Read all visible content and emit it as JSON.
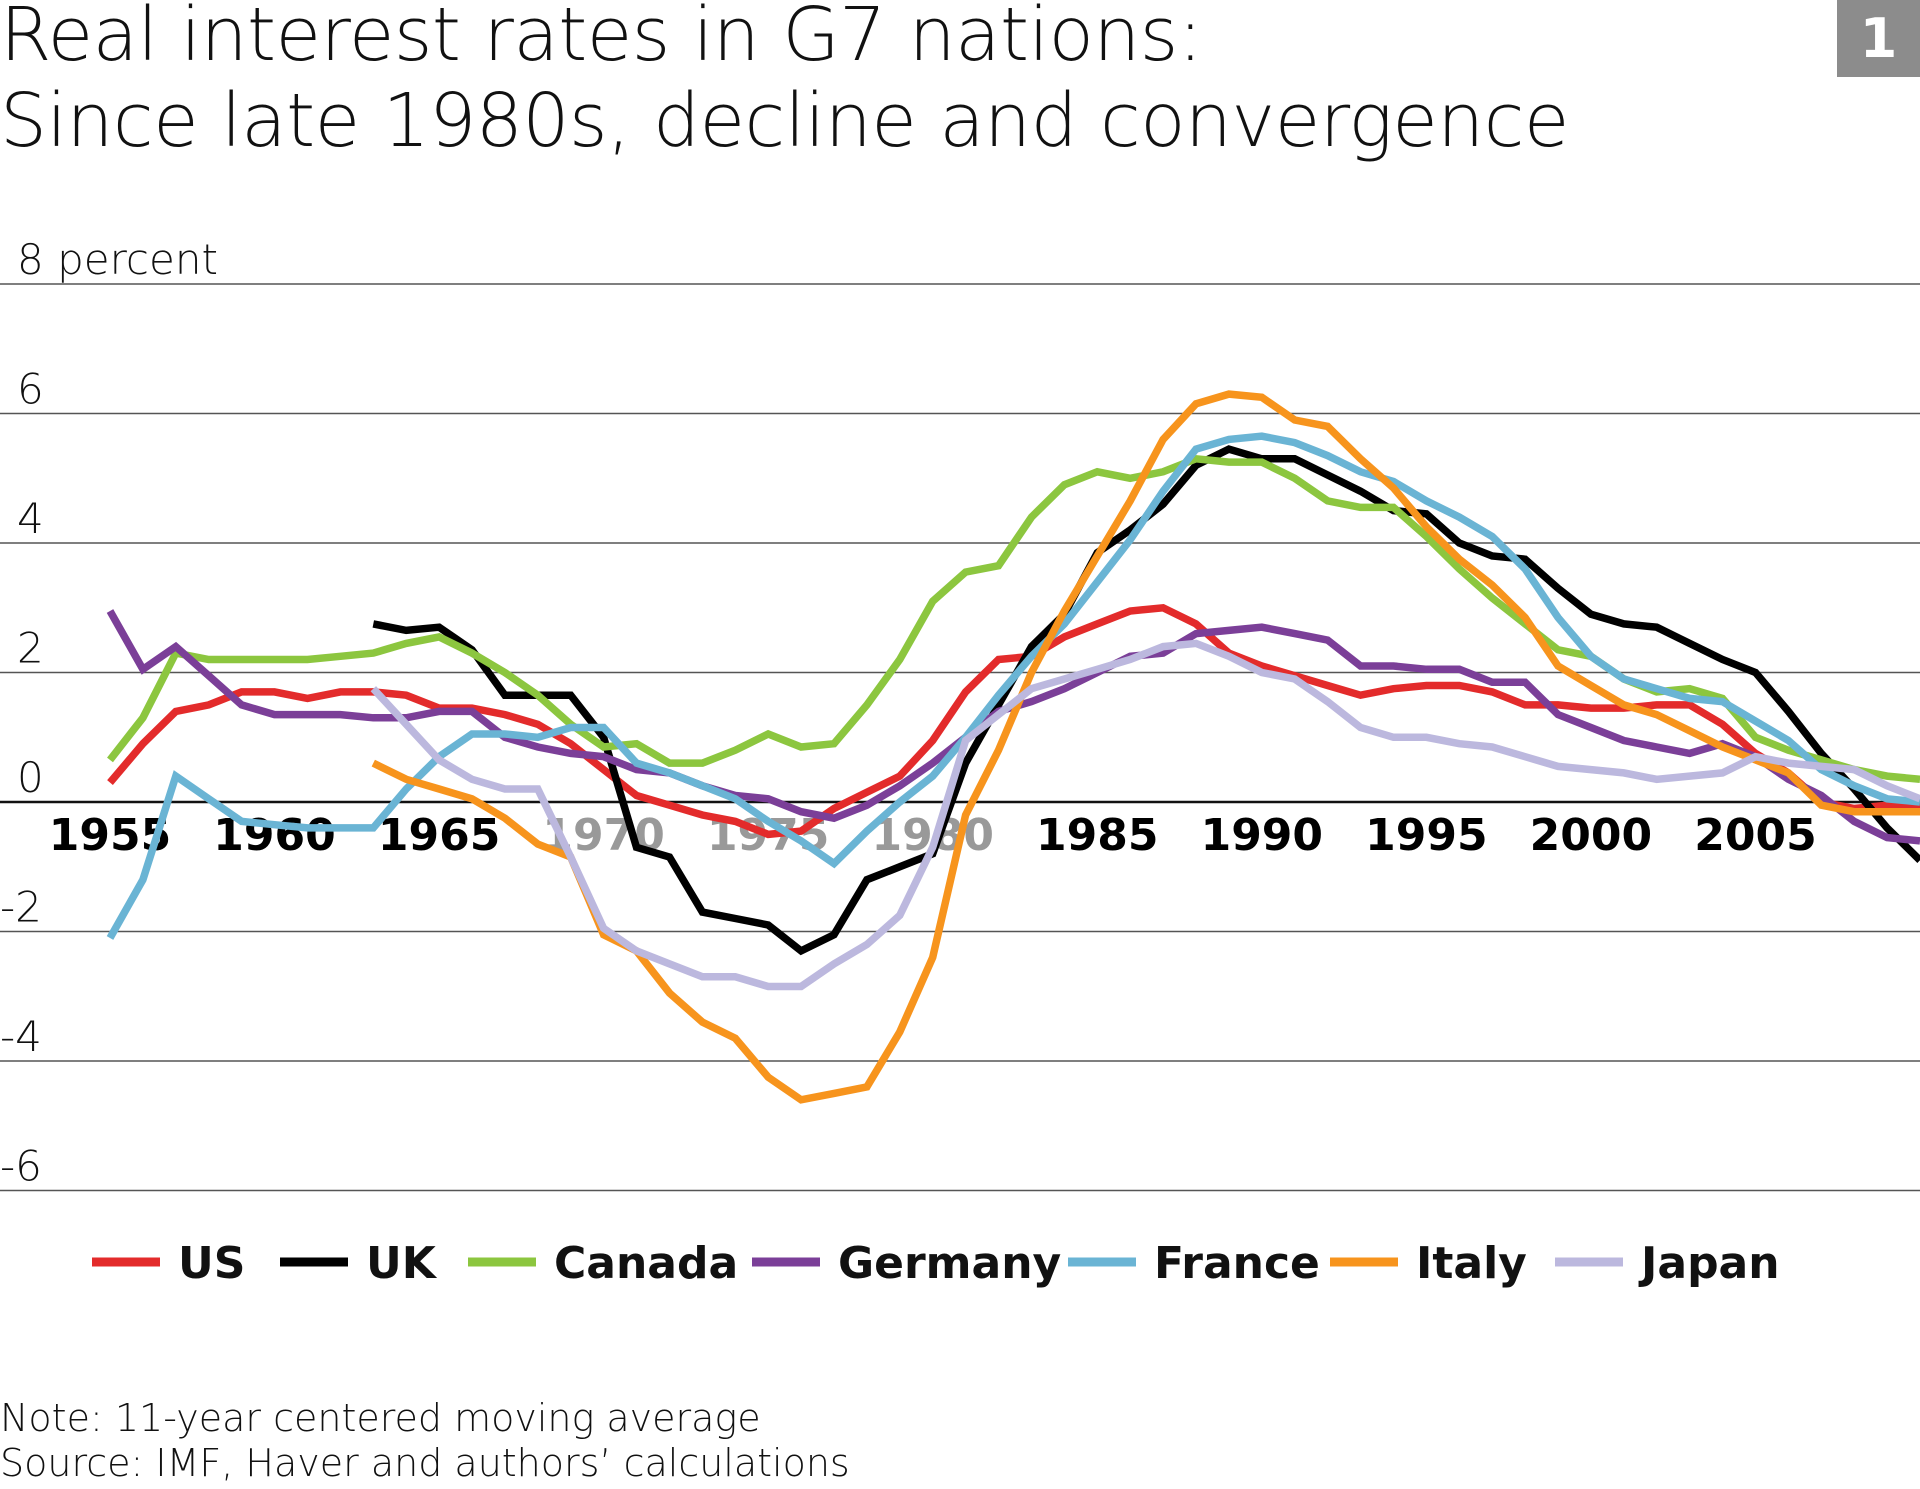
{
  "badge": "1",
  "title": {
    "line1": "Real interest rates in G7 nations:",
    "line2": "Since late 1980s, decline and convergence"
  },
  "notes": {
    "note": "Note: 11-year centered moving average",
    "source": "Source: IMF, Haver and authors’ calculations"
  },
  "chart_data": {
    "type": "line",
    "ylabel": "percent",
    "y_ticks": [
      "8 percent",
      "6",
      "4",
      "2",
      "0",
      "-2",
      "-4",
      "-6"
    ],
    "y_tick_values": [
      8,
      6,
      4,
      2,
      0,
      -2,
      -4,
      -6
    ],
    "ylim": [
      -6,
      8
    ],
    "xlim": [
      1955,
      2010
    ],
    "x_ticks": [
      1955,
      1960,
      1965,
      1970,
      1975,
      1980,
      1985,
      1990,
      1995,
      2000,
      2005
    ],
    "x_tick_colors": [
      "#000000",
      "#000000",
      "#000000",
      "#999999",
      "#999999",
      "#999999",
      "#000000",
      "#000000",
      "#000000",
      "#000000",
      "#000000"
    ],
    "grid": "horizontal",
    "legend_placement": "bottom",
    "series": [
      {
        "name": "US",
        "color": "#e32b2b",
        "start": 1955,
        "values": [
          0.3,
          0.9,
          1.4,
          1.5,
          1.7,
          1.7,
          1.6,
          1.7,
          1.7,
          1.65,
          1.45,
          1.45,
          1.35,
          1.2,
          0.9,
          0.5,
          0.1,
          -0.05,
          -0.2,
          -0.3,
          -0.5,
          -0.45,
          -0.1,
          0.15,
          0.4,
          0.95,
          1.7,
          2.2,
          2.25,
          2.55,
          2.75,
          2.95,
          3.0,
          2.75,
          2.3,
          2.1,
          1.95,
          1.8,
          1.65,
          1.75,
          1.8,
          1.8,
          1.7,
          1.5,
          1.5,
          1.45,
          1.45,
          1.5,
          1.5,
          1.2,
          0.75,
          0.45,
          0.0,
          -0.1,
          -0.05,
          -0.05
        ]
      },
      {
        "name": "UK",
        "color": "#000000",
        "start": 1963,
        "values": [
          2.75,
          2.65,
          2.7,
          2.35,
          1.65,
          1.65,
          1.65,
          1.0,
          -0.7,
          -0.85,
          -1.7,
          -1.8,
          -1.9,
          -2.3,
          -2.05,
          -1.2,
          -1.0,
          -0.8,
          0.6,
          1.5,
          2.4,
          2.9,
          3.85,
          4.2,
          4.6,
          5.2,
          5.45,
          5.3,
          5.3,
          5.05,
          4.8,
          4.5,
          4.45,
          4.0,
          3.8,
          3.75,
          3.3,
          2.9,
          2.75,
          2.7,
          2.45,
          2.2,
          2.0,
          1.4,
          0.75,
          0.2,
          -0.4,
          -0.9
        ]
      },
      {
        "name": "Canada",
        "color": "#8cc63f",
        "start": 1955,
        "values": [
          0.65,
          1.3,
          2.3,
          2.2,
          2.2,
          2.2,
          2.2,
          2.25,
          2.3,
          2.45,
          2.55,
          2.3,
          2.0,
          1.65,
          1.2,
          0.85,
          0.9,
          0.6,
          0.6,
          0.8,
          1.05,
          0.85,
          0.9,
          1.5,
          2.2,
          3.1,
          3.55,
          3.65,
          4.4,
          4.9,
          5.1,
          5.0,
          5.1,
          5.3,
          5.25,
          5.25,
          5.0,
          4.65,
          4.55,
          4.55,
          4.1,
          3.6,
          3.15,
          2.75,
          2.35,
          2.25,
          1.9,
          1.7,
          1.75,
          1.6,
          1.0,
          0.8,
          0.65,
          0.5,
          0.4,
          0.35
        ]
      },
      {
        "name": "Germany",
        "color": "#7b3f98",
        "start": 1955,
        "values": [
          2.95,
          2.05,
          2.4,
          1.95,
          1.5,
          1.35,
          1.35,
          1.35,
          1.3,
          1.3,
          1.4,
          1.4,
          1.0,
          0.85,
          0.75,
          0.7,
          0.5,
          0.45,
          0.25,
          0.1,
          0.05,
          -0.15,
          -0.25,
          -0.05,
          0.25,
          0.6,
          1.0,
          1.4,
          1.55,
          1.75,
          2.0,
          2.25,
          2.3,
          2.6,
          2.65,
          2.7,
          2.6,
          2.5,
          2.1,
          2.1,
          2.05,
          2.05,
          1.85,
          1.85,
          1.35,
          1.15,
          0.95,
          0.85,
          0.75,
          0.9,
          0.7,
          0.35,
          0.1,
          -0.3,
          -0.55,
          -0.6
        ]
      },
      {
        "name": "France",
        "color": "#6ab4d4",
        "start": 1955,
        "values": [
          -2.1,
          -1.2,
          0.4,
          0.05,
          -0.3,
          -0.35,
          -0.4,
          -0.4,
          -0.4,
          0.2,
          0.7,
          1.05,
          1.05,
          1.0,
          1.15,
          1.15,
          0.6,
          0.45,
          0.25,
          0.05,
          -0.3,
          -0.6,
          -0.95,
          -0.45,
          0.0,
          0.4,
          1.0,
          1.65,
          2.25,
          2.75,
          3.4,
          4.05,
          4.8,
          5.45,
          5.6,
          5.65,
          5.55,
          5.35,
          5.1,
          4.95,
          4.65,
          4.4,
          4.1,
          3.6,
          2.85,
          2.25,
          1.9,
          1.75,
          1.6,
          1.55,
          1.25,
          0.95,
          0.5,
          0.25,
          0.05,
          0.0
        ]
      },
      {
        "name": "Italy",
        "color": "#f7941d",
        "start": 1963,
        "values": [
          0.6,
          0.35,
          0.2,
          0.05,
          -0.25,
          -0.65,
          -0.85,
          -2.05,
          -2.3,
          -2.95,
          -3.4,
          -3.65,
          -4.25,
          -4.6,
          -4.5,
          -4.4,
          -3.55,
          -2.4,
          -0.2,
          0.8,
          2.0,
          2.95,
          3.8,
          4.65,
          5.6,
          6.15,
          6.3,
          6.25,
          5.9,
          5.8,
          5.3,
          4.85,
          4.25,
          3.75,
          3.35,
          2.85,
          2.1,
          1.8,
          1.5,
          1.35,
          1.1,
          0.85,
          0.65,
          0.45,
          -0.05,
          -0.15,
          -0.15,
          -0.15
        ]
      },
      {
        "name": "Japan",
        "color": "#bcb8de",
        "start": 1963,
        "values": [
          1.75,
          1.2,
          0.65,
          0.35,
          0.2,
          0.2,
          -0.85,
          -1.95,
          -2.3,
          -2.5,
          -2.7,
          -2.7,
          -2.85,
          -2.85,
          -2.5,
          -2.2,
          -1.75,
          -0.7,
          0.95,
          1.35,
          1.75,
          1.9,
          2.05,
          2.2,
          2.4,
          2.45,
          2.25,
          2.0,
          1.9,
          1.55,
          1.15,
          1.0,
          1.0,
          0.9,
          0.85,
          0.7,
          0.55,
          0.5,
          0.45,
          0.35,
          0.4,
          0.45,
          0.7,
          0.6,
          0.55,
          0.5,
          0.25,
          0.05
        ]
      }
    ]
  }
}
